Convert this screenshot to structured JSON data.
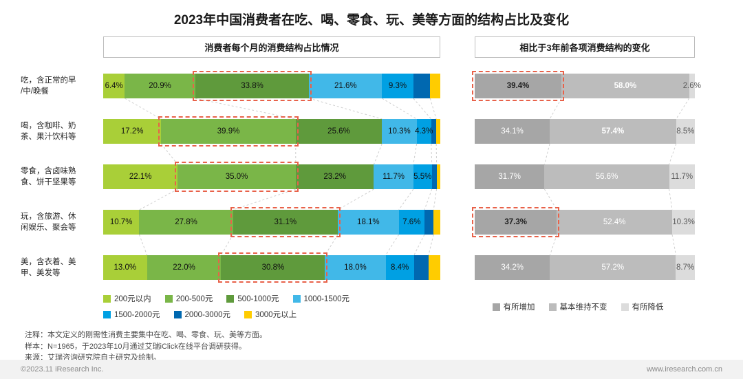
{
  "title": "2023年中国消费者在吃、喝、零食、玩、美等方面的结构占比及变化",
  "style": {
    "highlight": "#e8624a",
    "connector": "#cfcfcf"
  },
  "chart_data": [
    {
      "type": "bar",
      "orientation": "horizontal",
      "stacked": true,
      "title": "消费者每个月的消费结构占比情况",
      "unit": "%",
      "xlim": [
        0,
        100
      ],
      "legend_position": "bottom",
      "categories": [
        "吃，含正常的早\n/中/晚餐",
        "喝，含咖啡、奶\n茶、果汁饮料等",
        "零食，含卤味熟\n食、饼干坚果等",
        "玩，含旅游、休\n闲娱乐、聚会等",
        "美，含衣着、美\n甲、美发等"
      ],
      "series_labels": [
        "200元以内",
        "200-500元",
        "500-1000元",
        "1000-1500元",
        "1500-2000元",
        "2000-3000元",
        "3000元以上"
      ],
      "colors": [
        "#a9cf38",
        "#7ab648",
        "#5f9a3c",
        "#41b8e8",
        "#00a0e3",
        "#0068b0",
        "#ffcc00"
      ],
      "rows": [
        {
          "values": [
            6.4,
            20.9,
            33.8,
            21.6,
            9.3,
            5.0,
            3.0
          ],
          "labels": [
            "6.4%",
            "20.9%",
            "33.8%",
            "21.6%",
            "9.3%",
            "",
            ""
          ],
          "highlight_index": 2
        },
        {
          "values": [
            17.2,
            39.9,
            25.6,
            10.3,
            4.3,
            1.5,
            1.2
          ],
          "labels": [
            "17.2%",
            "39.9%",
            "25.6%",
            "10.3%",
            "4.3%",
            "",
            ""
          ],
          "highlight_index": 1
        },
        {
          "values": [
            22.1,
            35.0,
            23.2,
            11.7,
            5.5,
            1.4,
            1.1
          ],
          "labels": [
            "22.1%",
            "35.0%",
            "23.2%",
            "11.7%",
            "5.5%",
            "",
            ""
          ],
          "highlight_index": 1
        },
        {
          "values": [
            10.7,
            27.8,
            31.1,
            18.1,
            7.6,
            2.7,
            2.0
          ],
          "labels": [
            "10.7%",
            "27.8%",
            "31.1%",
            "18.1%",
            "7.6%",
            "",
            ""
          ],
          "highlight_index": 2
        },
        {
          "values": [
            13.0,
            22.0,
            30.8,
            18.0,
            8.4,
            4.3,
            3.5
          ],
          "labels": [
            "13.0%",
            "22.0%",
            "30.8%",
            "18.0%",
            "8.4%",
            "",
            ""
          ],
          "highlight_index": 2
        }
      ]
    },
    {
      "type": "bar",
      "orientation": "horizontal",
      "stacked": true,
      "title": "相比于3年前各项消费结构的变化",
      "unit": "%",
      "xlim": [
        0,
        100
      ],
      "legend_position": "bottom",
      "series_labels": [
        "有所增加",
        "基本维持不变",
        "有所降低"
      ],
      "colors": [
        "#a6a6a6",
        "#bcbcbc",
        "#dcdcdc"
      ],
      "label_colors": [
        "#ffffff",
        "#ffffff",
        "#595959"
      ],
      "rows": [
        {
          "values": [
            39.4,
            58.0,
            2.6
          ],
          "labels": [
            "39.4%",
            "58.0%",
            "2.6%"
          ],
          "bold": [
            true,
            true,
            false
          ],
          "highlight_index": 0
        },
        {
          "values": [
            34.1,
            57.4,
            8.5
          ],
          "labels": [
            "34.1%",
            "57.4%",
            "8.5%"
          ],
          "bold": [
            false,
            true,
            false
          ]
        },
        {
          "values": [
            31.7,
            56.6,
            11.7
          ],
          "labels": [
            "31.7%",
            "56.6%",
            "11.7%"
          ]
        },
        {
          "values": [
            37.3,
            52.4,
            10.3
          ],
          "labels": [
            "37.3%",
            "52.4%",
            "10.3%"
          ],
          "bold": [
            true,
            false,
            false
          ],
          "highlight_index": 0
        },
        {
          "values": [
            34.2,
            57.2,
            8.7
          ],
          "labels": [
            "34.2%",
            "57.2%",
            "8.7%"
          ]
        }
      ]
    }
  ],
  "notes": [
    "注释：本文定义的刚需性消费主要集中在吃、喝、零食、玩、美等方面。",
    "样本：N=1965，于2023年10月通过艾瑞iClick在线平台调研获得。",
    "来源：艾瑞咨询研究院自主研究及绘制。"
  ],
  "footer": {
    "left": "©2023.11 iResearch Inc.",
    "right": "www.iresearch.com.cn"
  }
}
